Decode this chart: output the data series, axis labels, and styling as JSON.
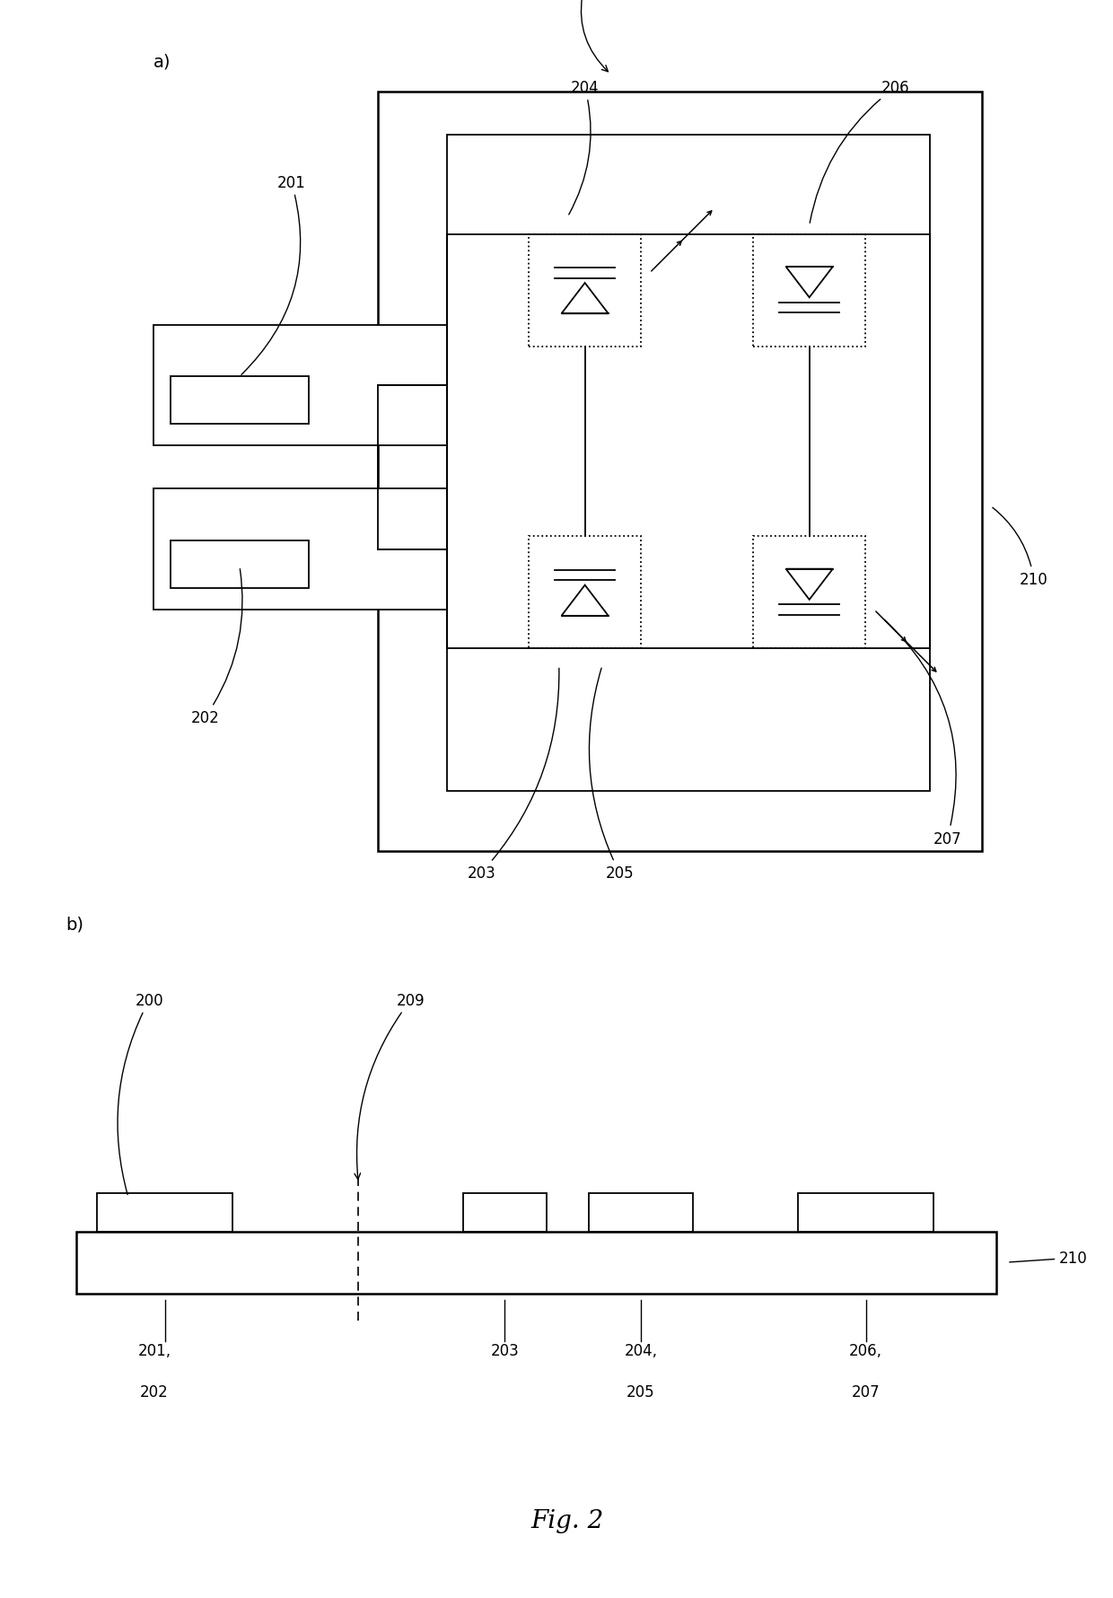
{
  "bg_color": "#ffffff",
  "fig_width": 12.4,
  "fig_height": 17.81,
  "title": "Fig. 2",
  "section_a_label": "a)",
  "section_b_label": "b)",
  "ref_200": "200",
  "ref_201": "201",
  "ref_202": "202",
  "ref_203": "203",
  "ref_204": "204",
  "ref_205": "205",
  "ref_206": "206",
  "ref_207": "207",
  "ref_209": "209",
  "ref_210": "210"
}
